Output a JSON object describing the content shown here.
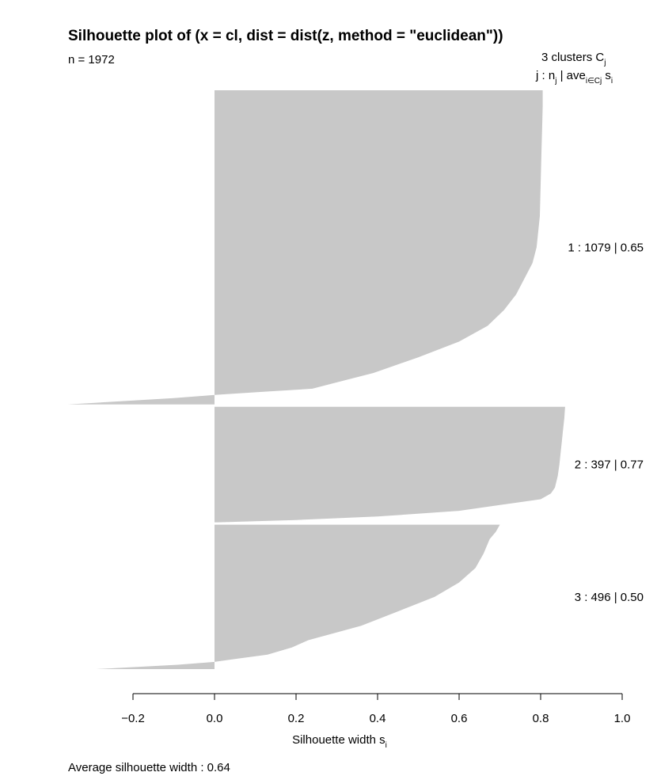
{
  "chart_data": {
    "type": "bar",
    "orientation": "horizontal",
    "title": "Silhouette plot of (x = cl, dist = dist(z, method = \"euclidean\"))",
    "n_label": "n = 1972",
    "header": {
      "line1_prefix": "3  clusters  C",
      "line1_sub": "j",
      "line2_a": "j :  n",
      "line2_a_sub": "j",
      "line2_b": " | ave",
      "line2_b_sub": "i∈Cj",
      "line2_c": " s",
      "line2_c_sub": "i"
    },
    "xlabel": "Silhouette width s",
    "xlabel_sub": "i",
    "xlim": [
      -0.2,
      1.0
    ],
    "ticks": [
      -0.2,
      0.0,
      0.2,
      0.4,
      0.6,
      0.8,
      1.0
    ],
    "tick_labels": [
      "−0.2",
      "0.0",
      "0.2",
      "0.4",
      "0.6",
      "0.8",
      "1.0"
    ],
    "bar_color": "#c8c8c8",
    "clusters": [
      {
        "id": 1,
        "n": 1079,
        "avg": 0.65,
        "label": "1 :   1079  |  0.65",
        "profile": [
          [
            0,
            0.805
          ],
          [
            0.05,
            0.805
          ],
          [
            0.1,
            0.804
          ],
          [
            0.2,
            0.802
          ],
          [
            0.3,
            0.8
          ],
          [
            0.4,
            0.798
          ],
          [
            0.5,
            0.79
          ],
          [
            0.55,
            0.78
          ],
          [
            0.6,
            0.76
          ],
          [
            0.65,
            0.74
          ],
          [
            0.7,
            0.71
          ],
          [
            0.75,
            0.67
          ],
          [
            0.8,
            0.6
          ],
          [
            0.85,
            0.5
          ],
          [
            0.9,
            0.39
          ],
          [
            0.93,
            0.3
          ],
          [
            0.95,
            0.24
          ],
          [
            0.96,
            0.12
          ],
          [
            0.97,
            0.0
          ],
          [
            0.98,
            -0.1
          ],
          [
            1.0,
            -0.36
          ]
        ]
      },
      {
        "id": 2,
        "n": 397,
        "avg": 0.77,
        "label": "2 :   397  |  0.77",
        "profile": [
          [
            0,
            0.86
          ],
          [
            0.1,
            0.858
          ],
          [
            0.2,
            0.855
          ],
          [
            0.3,
            0.852
          ],
          [
            0.4,
            0.849
          ],
          [
            0.5,
            0.846
          ],
          [
            0.6,
            0.842
          ],
          [
            0.7,
            0.835
          ],
          [
            0.75,
            0.825
          ],
          [
            0.8,
            0.8
          ],
          [
            0.85,
            0.7
          ],
          [
            0.9,
            0.6
          ],
          [
            0.95,
            0.4
          ],
          [
            0.98,
            0.2
          ],
          [
            1.0,
            0.01
          ]
        ]
      },
      {
        "id": 3,
        "n": 496,
        "avg": 0.5,
        "label": "3 :   496  |  0.50",
        "profile": [
          [
            0,
            0.7
          ],
          [
            0.05,
            0.69
          ],
          [
            0.1,
            0.675
          ],
          [
            0.2,
            0.66
          ],
          [
            0.3,
            0.64
          ],
          [
            0.4,
            0.6
          ],
          [
            0.5,
            0.54
          ],
          [
            0.6,
            0.45
          ],
          [
            0.7,
            0.36
          ],
          [
            0.8,
            0.23
          ],
          [
            0.85,
            0.19
          ],
          [
            0.9,
            0.13
          ],
          [
            0.93,
            0.05
          ],
          [
            0.95,
            0.0
          ],
          [
            0.97,
            -0.09
          ],
          [
            1.0,
            -0.29
          ]
        ]
      }
    ],
    "footer": "Average silhouette width :  0.64"
  }
}
